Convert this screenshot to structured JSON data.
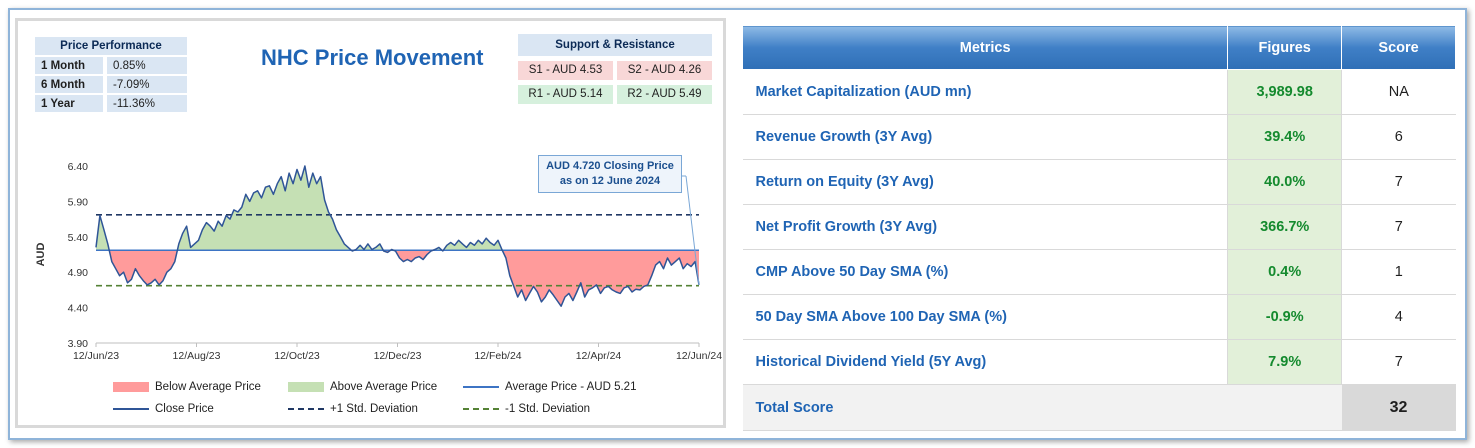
{
  "performance": {
    "header": "Price Performance",
    "rows": [
      {
        "label": "1 Month",
        "value": "0.85%"
      },
      {
        "label": "6 Month",
        "value": "-7.09%"
      },
      {
        "label": "1 Year",
        "value": "-11.36%"
      }
    ]
  },
  "support_resistance": {
    "header": "Support & Resistance",
    "s1": "S1 - AUD 4.53",
    "s2": "S2 - AUD 4.26",
    "r1": "R1 - AUD 5.14",
    "r2": "R2 - AUD 5.49"
  },
  "callout": {
    "line1": "AUD 4.720 Closing Price",
    "line2": "as on 12 June 2024"
  },
  "legend": {
    "below": "Below Average Price",
    "above": "Above Average Price",
    "avg": "Average Price - AUD 5.21",
    "close": "Close Price",
    "plus_sd": "+1 Std. Deviation",
    "minus_sd": "-1 Std. Deviation"
  },
  "colors": {
    "close": "#2f5597",
    "average": "#3d74c4",
    "above_fill": "#c5e0b4",
    "below_fill": "#ff9b9b",
    "plus_sd": "#203864",
    "minus_sd": "#548235"
  },
  "chart_data": {
    "type": "line",
    "title": "NHC Price Movement",
    "ylabel": "AUD",
    "xlabel": "",
    "ylim": [
      3.9,
      6.4
    ],
    "yticks": [
      "3.90",
      "4.40",
      "4.90",
      "5.40",
      "5.90",
      "6.40"
    ],
    "xticks": [
      "12/Jun/23",
      "12/Aug/23",
      "12/Oct/23",
      "12/Dec/23",
      "12/Feb/24",
      "12/Apr/24",
      "12/Jun/24"
    ],
    "average": 5.21,
    "plus_1sd": 5.71,
    "minus_1sd": 4.71,
    "close_price": [
      5.25,
      5.7,
      5.5,
      5.3,
      5.05,
      4.95,
      4.85,
      4.9,
      4.75,
      4.8,
      4.95,
      4.85,
      4.78,
      4.72,
      4.75,
      4.8,
      4.72,
      4.78,
      4.9,
      4.95,
      5.05,
      5.3,
      5.45,
      5.55,
      5.25,
      5.3,
      5.35,
      5.5,
      5.6,
      5.55,
      5.48,
      5.62,
      5.55,
      5.7,
      5.65,
      5.78,
      5.75,
      5.82,
      6.0,
      5.9,
      6.02,
      6.05,
      5.95,
      6.1,
      6.12,
      6.0,
      6.15,
      6.25,
      6.05,
      6.3,
      6.15,
      6.35,
      6.2,
      6.4,
      6.1,
      6.3,
      6.15,
      6.25,
      5.92,
      5.75,
      5.65,
      5.5,
      5.4,
      5.3,
      5.25,
      5.2,
      5.22,
      5.28,
      5.22,
      5.3,
      5.22,
      5.25,
      5.3,
      5.2,
      5.18,
      5.22,
      5.2,
      5.1,
      5.05,
      5.08,
      5.05,
      5.1,
      5.12,
      5.08,
      5.15,
      5.2,
      5.22,
      5.25,
      5.2,
      5.28,
      5.32,
      5.28,
      5.35,
      5.3,
      5.25,
      5.32,
      5.28,
      5.35,
      5.3,
      5.38,
      5.32,
      5.28,
      5.35,
      5.22,
      5.1,
      4.85,
      4.7,
      4.55,
      4.65,
      4.5,
      4.6,
      4.7,
      4.62,
      4.48,
      4.55,
      4.65,
      4.58,
      4.5,
      4.42,
      4.55,
      4.6,
      4.5,
      4.62,
      4.75,
      4.55,
      4.65,
      4.68,
      4.72,
      4.6,
      4.68,
      4.7,
      4.65,
      4.62,
      4.6,
      4.68,
      4.7,
      4.62,
      4.66,
      4.65,
      4.7,
      4.72,
      4.85,
      5.0,
      5.05,
      4.95,
      5.1,
      5.0,
      5.05,
      5.1,
      4.95,
      5.02,
      4.98,
      5.05,
      4.72
    ]
  },
  "metrics": {
    "headers": {
      "metric": "Metrics",
      "figures": "Figures",
      "score": "Score"
    },
    "rows": [
      {
        "name": "Market Capitalization (AUD mn)",
        "figure": "3,989.98",
        "score": "NA"
      },
      {
        "name": "Revenue Growth (3Y Avg)",
        "figure": "39.4%",
        "score": "6"
      },
      {
        "name": "Return on Equity (3Y Avg)",
        "figure": "40.0%",
        "score": "7"
      },
      {
        "name": "Net Profit Growth (3Y Avg)",
        "figure": "366.7%",
        "score": "7"
      },
      {
        "name": "CMP Above 50 Day SMA (%)",
        "figure": "0.4%",
        "score": "1"
      },
      {
        "name": "50 Day SMA Above 100 Day SMA (%)",
        "figure": "-0.9%",
        "score": "4"
      },
      {
        "name": "Historical Dividend Yield (5Y Avg)",
        "figure": "7.9%",
        "score": "7"
      }
    ],
    "total_label": "Total Score",
    "total_score": "32"
  }
}
